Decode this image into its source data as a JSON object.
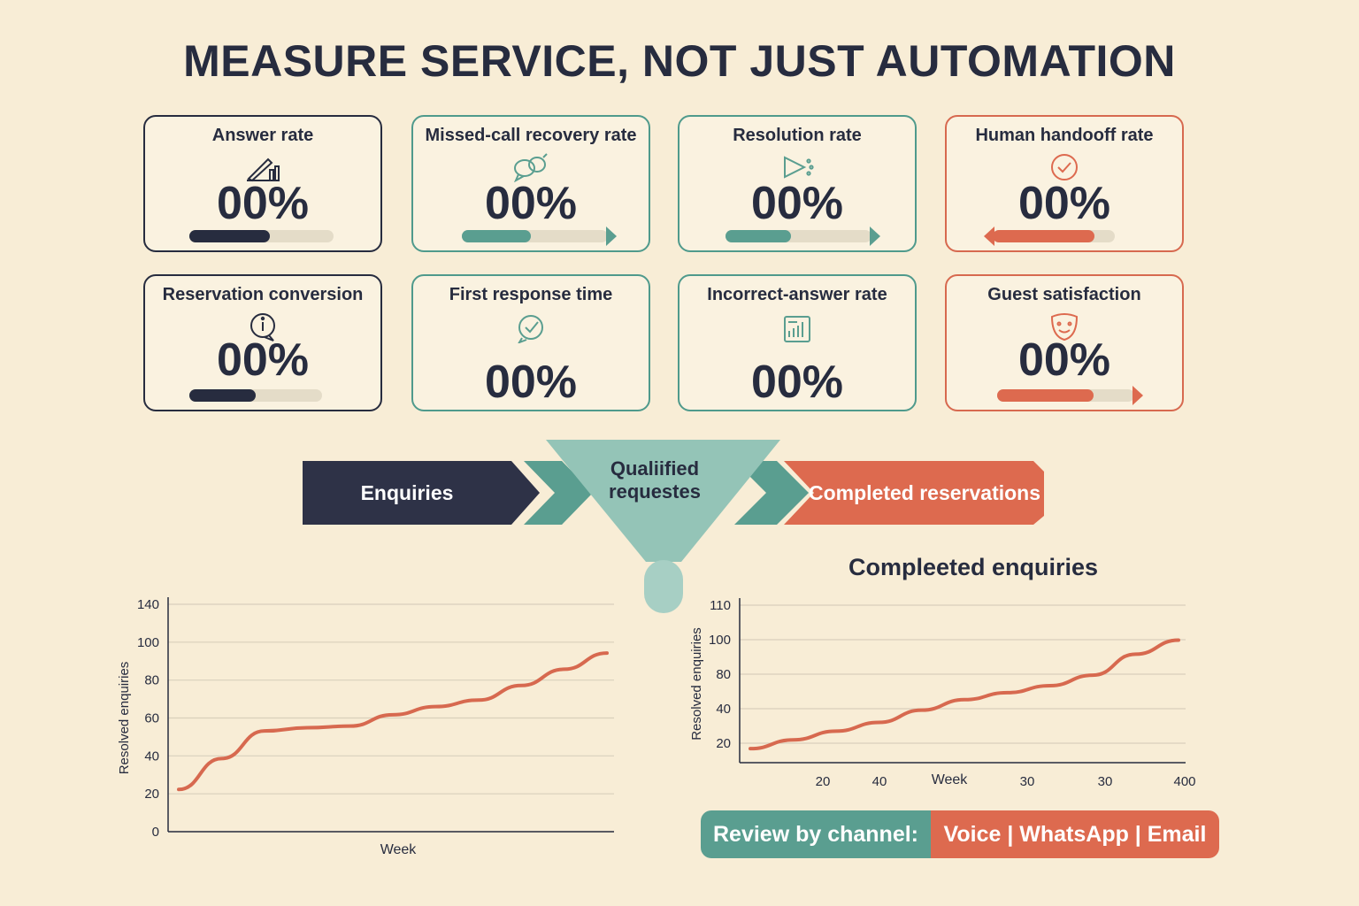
{
  "title": "MEASURE SERVICE, NOT JUST AUTOMATION",
  "colors": {
    "navy": "#272c3f",
    "teal": "#5a9e90",
    "coral": "#dd6a4f",
    "background": "#f8edd6"
  },
  "metrics": [
    {
      "label": "Answer rate",
      "value": "00%",
      "icon": "pen-chart-icon",
      "accent": "navy",
      "progress": 0.56,
      "direction": "none"
    },
    {
      "label": "Missed-call recovery rate",
      "value": "00%",
      "icon": "chat-bubbles-icon",
      "accent": "teal",
      "progress": 0.47,
      "direction": "right"
    },
    {
      "label": "Resolution rate",
      "value": "00%",
      "icon": "send-arrow-icon",
      "accent": "teal",
      "progress": 0.45,
      "direction": "right"
    },
    {
      "label": "Human handooff rate",
      "value": "00%",
      "icon": "check-circle-icon",
      "accent": "coral",
      "progress": 0.83,
      "direction": "left"
    },
    {
      "label": "Reservation conversion",
      "value": "00%",
      "icon": "info-bubble-icon",
      "accent": "navy",
      "progress": 0.5,
      "direction": "none"
    },
    {
      "label": "First response time",
      "value": "00%",
      "icon": "check-bubble-icon",
      "accent": "teal",
      "progress": null,
      "direction": "none"
    },
    {
      "label": "Incorrect-answer rate",
      "value": "00%",
      "icon": "document-chart-icon",
      "accent": "teal",
      "progress": null,
      "direction": "none"
    },
    {
      "label": "Guest satisfaction",
      "value": "00%",
      "icon": "smiley-mask-icon",
      "accent": "coral",
      "progress": 0.7,
      "direction": "right"
    }
  ],
  "funnel": {
    "steps": [
      "Enquiries",
      "Qualiified requestes",
      "Completed reservations"
    ]
  },
  "chart_data": [
    {
      "type": "line",
      "title": "",
      "xlabel": "Week",
      "ylabel": "Resolved enquiries",
      "ylim": [
        0,
        140
      ],
      "yticks": [
        "0",
        "20",
        "40",
        "60",
        "80",
        "100",
        "140"
      ],
      "grid": true,
      "series": [
        {
          "x": [
            0,
            1,
            2,
            3,
            4,
            5,
            6,
            7,
            8,
            9,
            10
          ],
          "values": [
            26,
            45,
            62,
            64,
            65,
            72,
            77,
            81,
            90,
            100,
            110
          ]
        }
      ]
    },
    {
      "type": "line",
      "title": "Compleeted enquiries",
      "xlabel": "Week",
      "ylabel": "Resolved enquiries",
      "ylim": [
        20,
        110
      ],
      "yticks": [
        "20",
        "40",
        "80",
        "100",
        "110"
      ],
      "xticks": [
        "20",
        "40",
        "30",
        "30",
        "400"
      ],
      "grid": true,
      "series": [
        {
          "x": [
            0,
            1,
            2,
            3,
            4,
            5,
            6,
            7,
            8,
            9,
            10
          ],
          "values": [
            28,
            33,
            38,
            43,
            50,
            56,
            60,
            64,
            70,
            82,
            90
          ]
        }
      ]
    }
  ],
  "channel_review": {
    "label": "Review by channel:",
    "channels": "Voice | WhatsApp | Email"
  }
}
